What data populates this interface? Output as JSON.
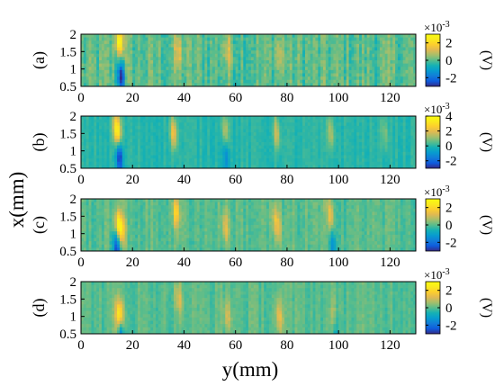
{
  "chart_data": {
    "type": "heatmap",
    "xlabel": "y(mm)",
    "ylabel": "x(mm)",
    "colormap": "parula",
    "x_ticks": [
      "0",
      "20",
      "40",
      "60",
      "80",
      "100",
      "120"
    ],
    "x_tick_values": [
      0,
      20,
      40,
      60,
      80,
      100,
      120
    ],
    "xlim": [
      0,
      130
    ],
    "y_ticks": [
      "2",
      "1.5",
      "1",
      "0.5"
    ],
    "y_tick_values": [
      2,
      1.5,
      1,
      0.5
    ],
    "ylim": [
      0.5,
      2
    ],
    "colorbar_unit": "(V)",
    "colorbar_exponent_base": "×10",
    "colorbar_exponent": "-3",
    "panels": [
      {
        "label": "(a)",
        "clim": [
          -3,
          3
        ],
        "cbar_ticks": [
          {
            "label": "2",
            "value": 2
          },
          {
            "label": "0",
            "value": 0
          },
          {
            "label": "-2",
            "value": -2
          }
        ],
        "features": [
          {
            "y_mm": 15,
            "x_top": 1.8,
            "amp": 2.8,
            "width": 1.6,
            "slant": 0.6
          },
          {
            "y_mm": 15.5,
            "x_top": 0.75,
            "amp": -2.8,
            "width": 1.4,
            "slant": 0.4
          },
          {
            "y_mm": 38,
            "x_top": 1.5,
            "amp": 1.2,
            "width": 1.6,
            "slant": 1.0
          },
          {
            "y_mm": 57,
            "x_top": 1.5,
            "amp": 1.0,
            "width": 2.0,
            "slant": 1.2
          },
          {
            "y_mm": 77,
            "x_top": 1.4,
            "amp": 0.8,
            "width": 2.0,
            "slant": 1.2
          }
        ],
        "noise": 0.55
      },
      {
        "label": "(b)",
        "clim": [
          -3,
          4
        ],
        "cbar_ticks": [
          {
            "label": "4",
            "value": 4
          },
          {
            "label": "2",
            "value": 2
          },
          {
            "label": "0",
            "value": 0
          },
          {
            "label": "-2",
            "value": -2
          }
        ],
        "features": [
          {
            "y_mm": 14,
            "x_top": 1.6,
            "amp": 3.8,
            "width": 1.5,
            "slant": 0.8
          },
          {
            "y_mm": 15,
            "x_top": 0.8,
            "amp": -3.0,
            "width": 1.3,
            "slant": 0.4
          },
          {
            "y_mm": 36,
            "x_top": 1.5,
            "amp": 2.4,
            "width": 1.3,
            "slant": 0.6
          },
          {
            "y_mm": 56,
            "x_top": 1.6,
            "amp": 1.6,
            "width": 1.3,
            "slant": 0.6
          },
          {
            "y_mm": 56.5,
            "x_top": 0.8,
            "amp": -1.2,
            "width": 1.2,
            "slant": 0.4
          },
          {
            "y_mm": 76,
            "x_top": 1.5,
            "amp": 1.8,
            "width": 1.3,
            "slant": 0.6
          },
          {
            "y_mm": 97,
            "x_top": 1.5,
            "amp": 1.4,
            "width": 1.3,
            "slant": 0.6
          },
          {
            "y_mm": 118,
            "x_top": 1.5,
            "amp": 1.0,
            "width": 1.3,
            "slant": 0.6
          }
        ],
        "noise": 0.25
      },
      {
        "label": "(c)",
        "clim": [
          -3,
          3
        ],
        "cbar_ticks": [
          {
            "label": "2",
            "value": 2
          },
          {
            "label": "0",
            "value": 0
          },
          {
            "label": "-2",
            "value": -2
          }
        ],
        "features": [
          {
            "y_mm": 15,
            "x_top": 1.2,
            "amp": 2.9,
            "width": 1.8,
            "slant": 1.0
          },
          {
            "y_mm": 14,
            "x_top": 0.6,
            "amp": -2.6,
            "width": 1.4,
            "slant": 0.4
          },
          {
            "y_mm": 37,
            "x_top": 1.6,
            "amp": 1.8,
            "width": 1.4,
            "slant": 0.6
          },
          {
            "y_mm": 56,
            "x_top": 1.2,
            "amp": 1.2,
            "width": 1.6,
            "slant": 1.0
          },
          {
            "y_mm": 76,
            "x_top": 1.3,
            "amp": 1.5,
            "width": 1.5,
            "slant": 1.4
          },
          {
            "y_mm": 97,
            "x_top": 1.5,
            "amp": 1.4,
            "width": 1.4,
            "slant": 0.8
          },
          {
            "y_mm": 97.5,
            "x_top": 0.7,
            "amp": -1.4,
            "width": 1.2,
            "slant": 0.4
          }
        ],
        "noise": 0.35
      },
      {
        "label": "(d)",
        "clim": [
          -3,
          3
        ],
        "cbar_ticks": [
          {
            "label": "2",
            "value": 2
          },
          {
            "label": "0",
            "value": 0
          },
          {
            "label": "-2",
            "value": -2
          }
        ],
        "features": [
          {
            "y_mm": 15,
            "x_top": 1.0,
            "amp": 2.9,
            "width": 1.6,
            "slant": 0.6
          },
          {
            "y_mm": 15.5,
            "x_top": 0.55,
            "amp": -2.4,
            "width": 1.2,
            "slant": 0.3
          },
          {
            "y_mm": 38,
            "x_top": 1.5,
            "amp": 1.2,
            "width": 1.4,
            "slant": 0.8
          },
          {
            "y_mm": 57,
            "x_top": 1.0,
            "amp": 1.0,
            "width": 1.6,
            "slant": 0.6
          },
          {
            "y_mm": 77,
            "x_top": 1.0,
            "amp": 1.4,
            "width": 1.4,
            "slant": 0.6
          },
          {
            "y_mm": 98,
            "x_top": 0.9,
            "amp": 0.9,
            "width": 1.4,
            "slant": 0.6
          },
          {
            "y_mm": 98.5,
            "x_top": 0.6,
            "amp": -1.2,
            "width": 1.2,
            "slant": 0.3
          }
        ],
        "noise": 0.3
      }
    ]
  }
}
